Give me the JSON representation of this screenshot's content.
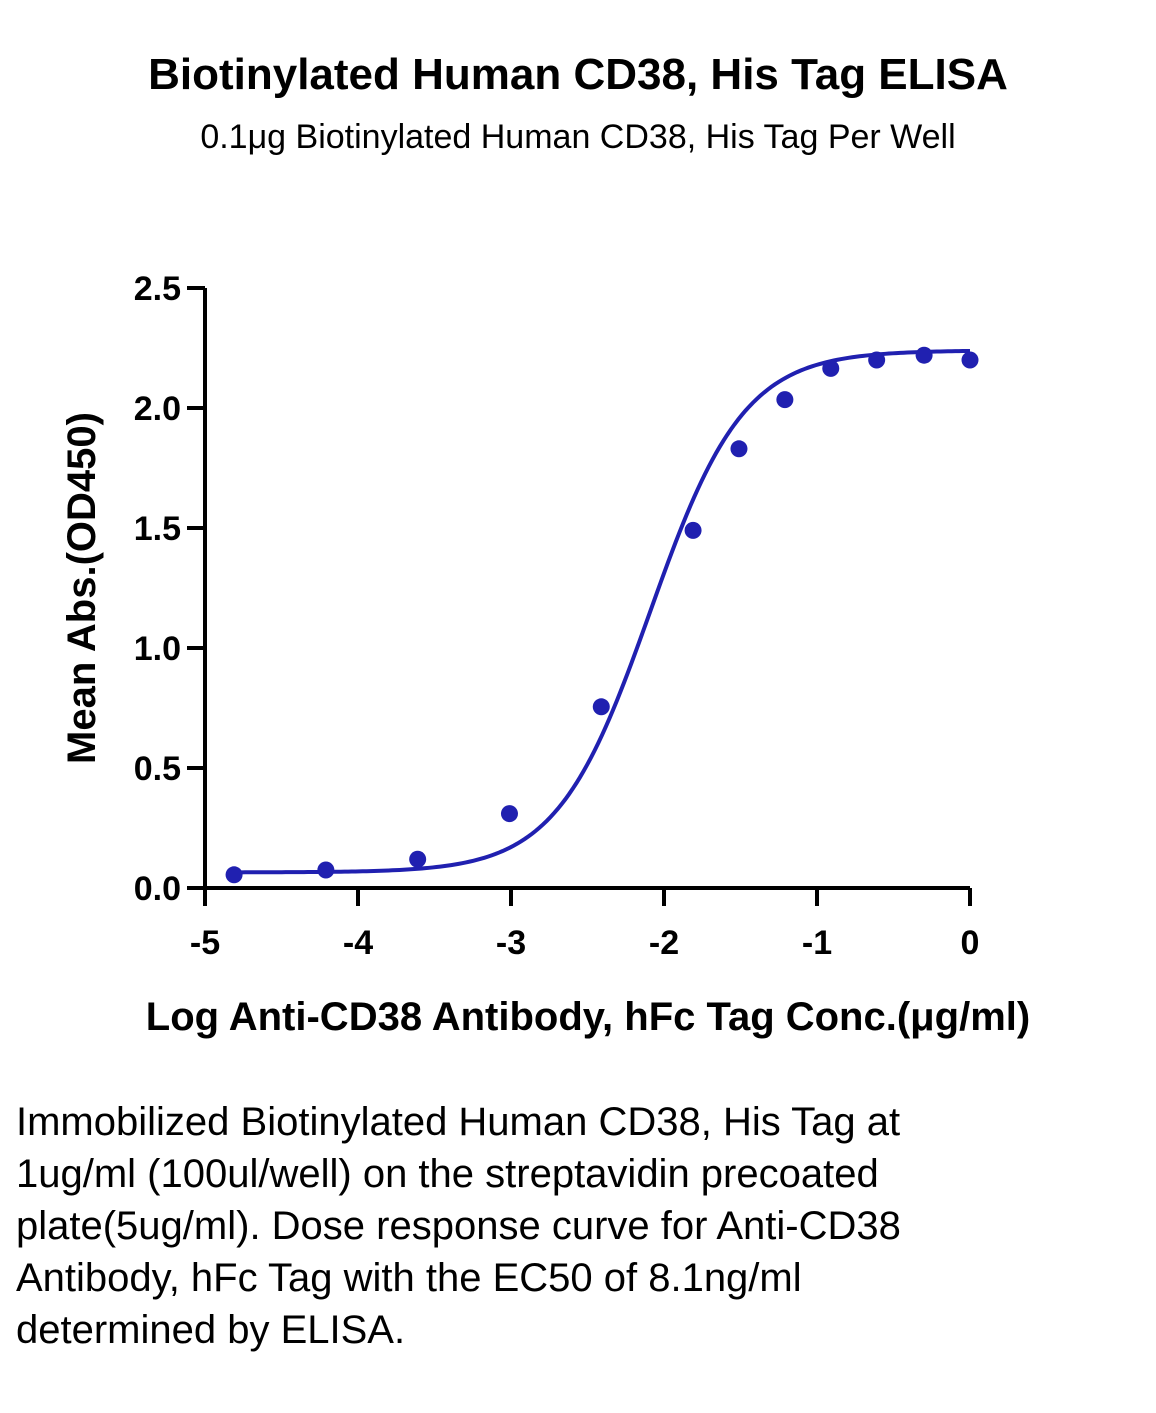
{
  "chart_data": {
    "type": "scatter",
    "title": "Biotinylated Human CD38, His Tag ELISA",
    "subtitle": "0.1μg Biotinylated Human CD38, His Tag Per Well",
    "xlabel": "Log Anti-CD38 Antibody, hFc Tag Conc.(μg/ml)",
    "ylabel": "Mean Abs.(OD450)",
    "xlim": [
      -5,
      0
    ],
    "ylim": [
      0,
      2.5
    ],
    "xticks": [
      -5,
      -4,
      -3,
      -2,
      -1,
      0
    ],
    "yticks": [
      0.0,
      0.5,
      1.0,
      1.5,
      2.0,
      2.5
    ],
    "xtick_labels": [
      "-5",
      "-4",
      "-3",
      "-2",
      "-1",
      "0"
    ],
    "ytick_labels": [
      "0.0",
      "0.5",
      "1.0",
      "1.5",
      "2.0",
      "2.5"
    ],
    "grid": false,
    "color": "#2020b0",
    "series": [
      {
        "x": [
          -4.81,
          -4.21,
          -3.61,
          -3.01,
          -2.41,
          -1.81,
          -1.51,
          -1.21,
          -0.91,
          -0.61,
          -0.3,
          0.0
        ],
        "y": [
          0.055,
          0.075,
          0.12,
          0.31,
          0.755,
          1.49,
          1.83,
          2.035,
          2.165,
          2.2,
          2.22,
          2.2
        ]
      }
    ],
    "fit_curve": {
      "model": "4PL",
      "bottom": 0.065,
      "top": 2.24,
      "log_ec50": -2.09,
      "hill_slope": 1.42
    }
  },
  "caption": "Immobilized Biotinylated Human CD38, His Tag at 1ug/ml (100ul/well) on the streptavidin precoated plate(5ug/ml). Dose response curve for Anti-CD38 Antibody, hFc Tag with the EC50 of 8.1ng/ml determined by ELISA."
}
